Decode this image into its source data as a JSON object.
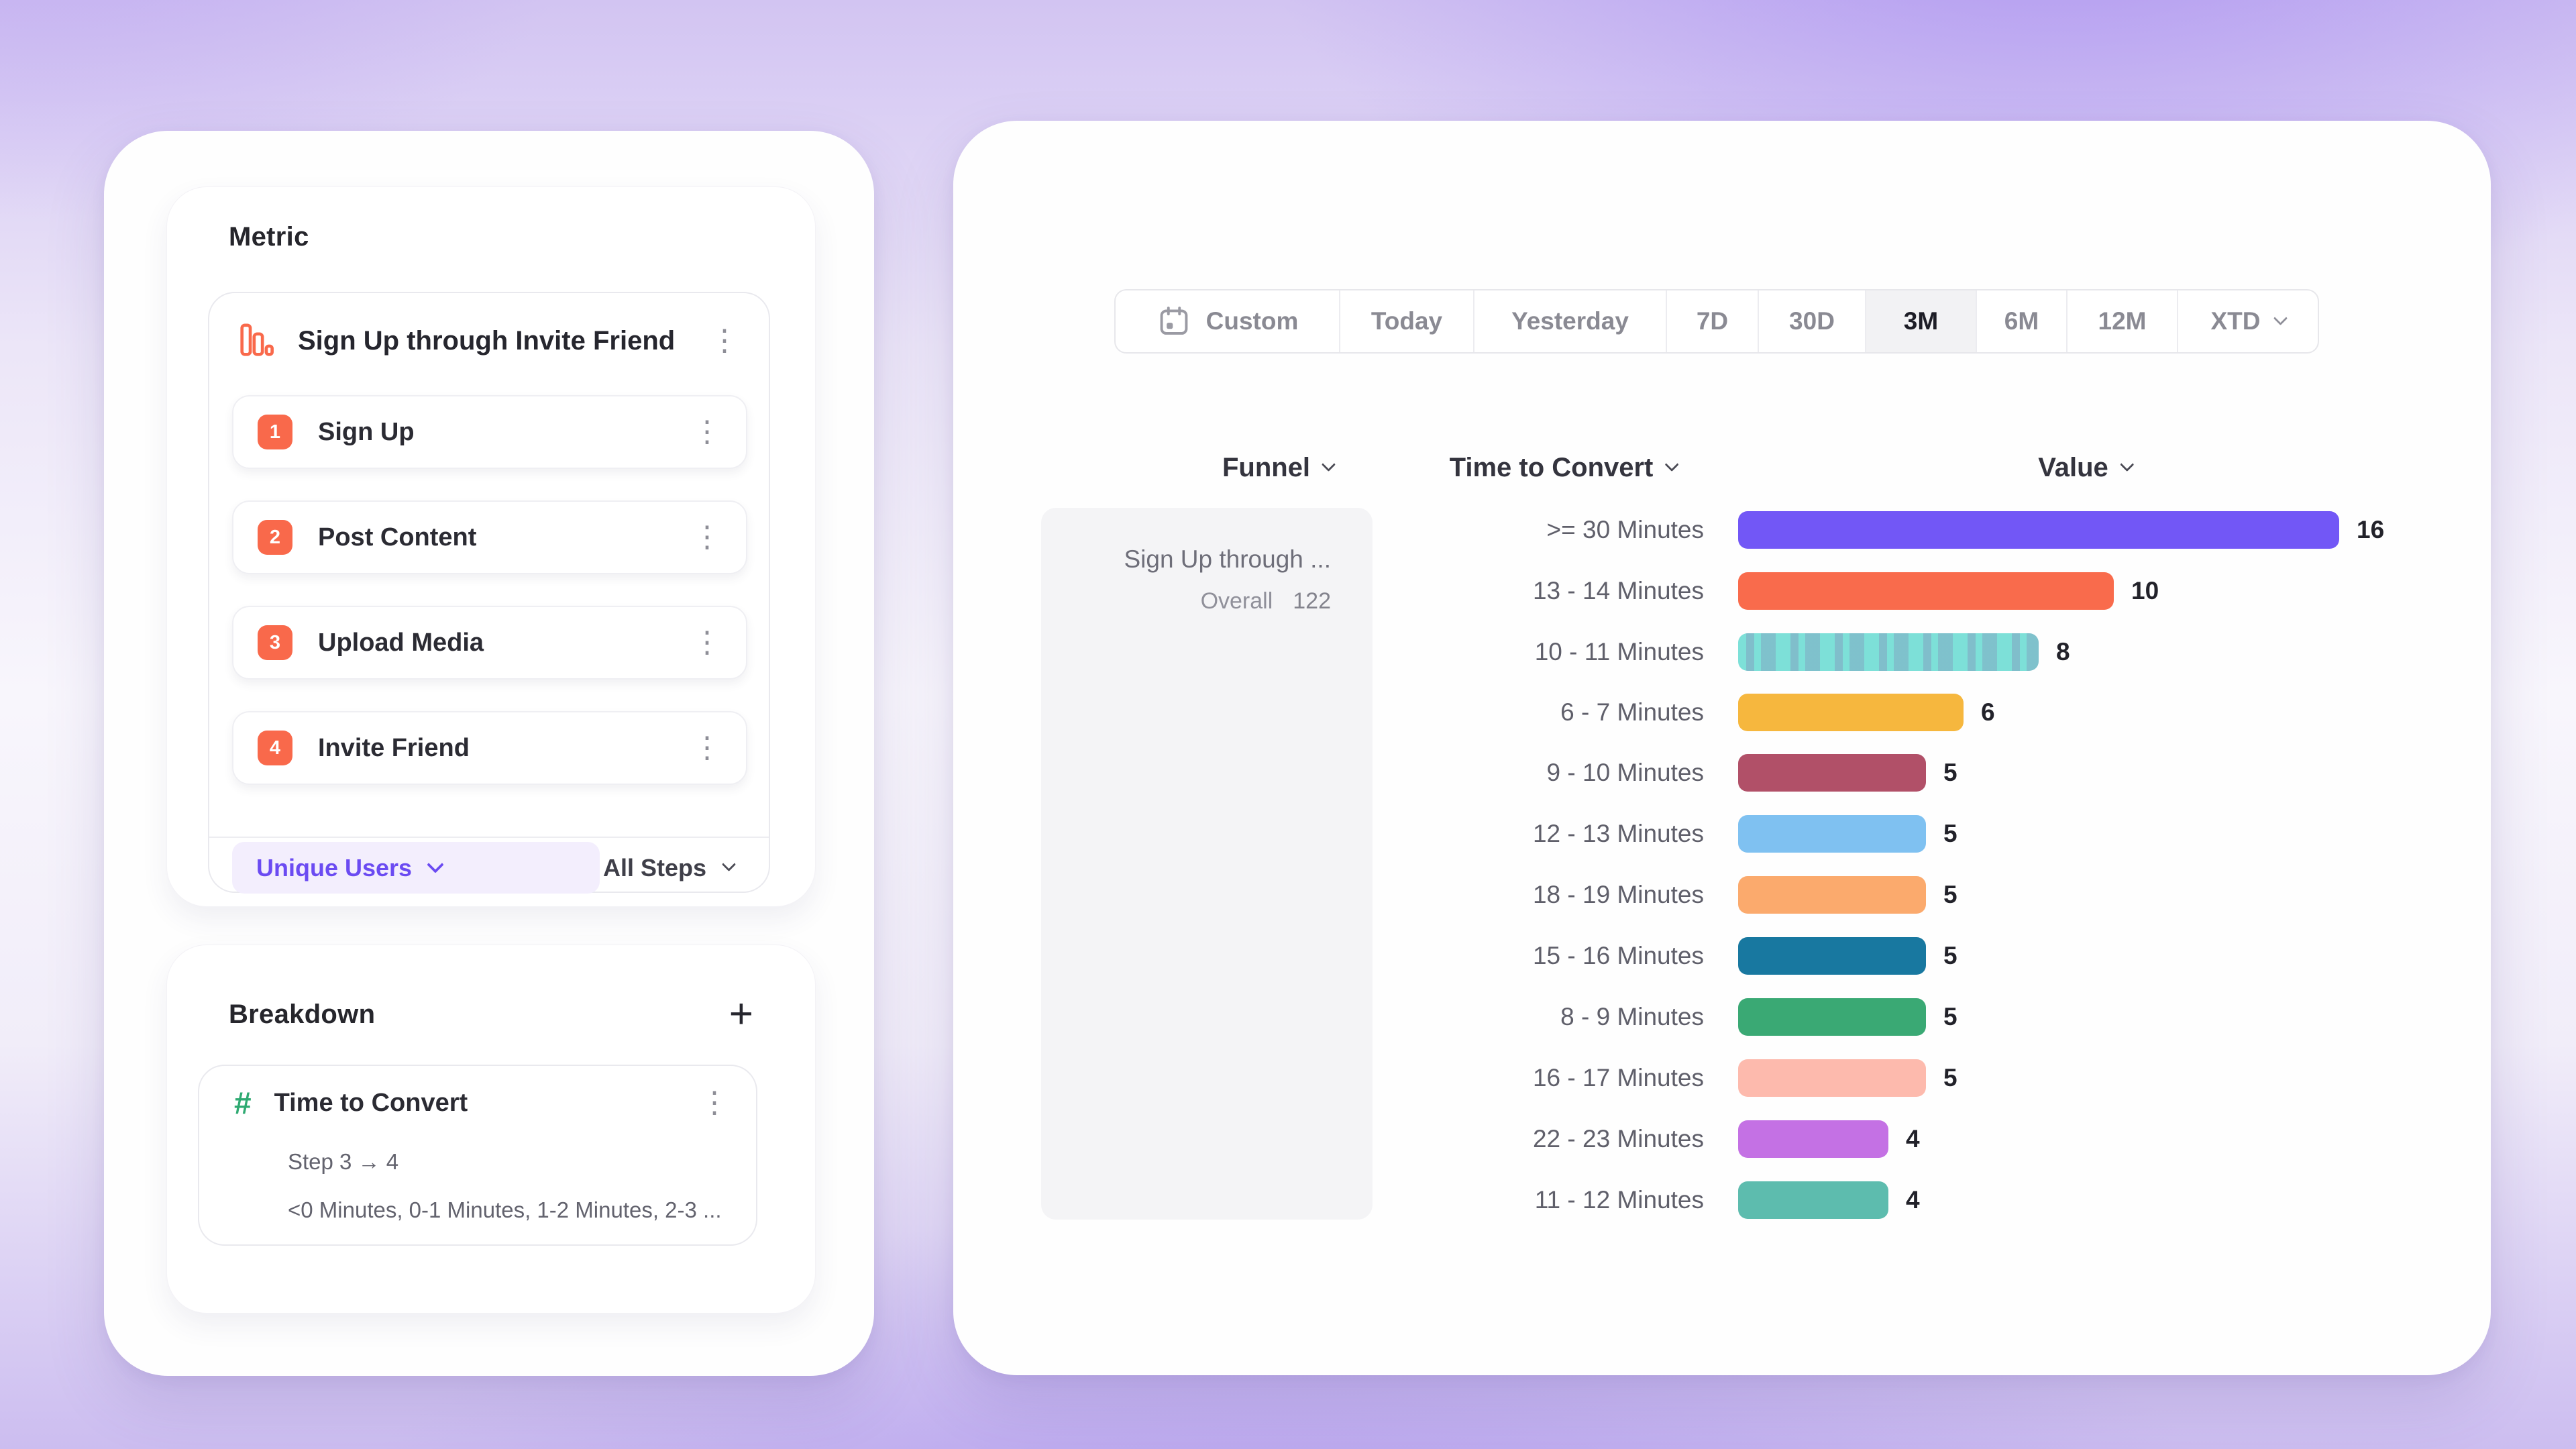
{
  "theme": {
    "accent_purple": "#6b4bf2",
    "accent_orange": "#f9694b",
    "accent_green": "#2faa72",
    "funnel_box_bg": "#f4f4f6",
    "selected_date_bg": "#f2f2f4"
  },
  "left_panel": {
    "metric": {
      "title": "Metric",
      "funnel_name": "Sign Up through Invite Friend",
      "steps": [
        {
          "num": "1",
          "label": "Sign Up"
        },
        {
          "num": "2",
          "label": "Post Content"
        },
        {
          "num": "3",
          "label": "Upload Media"
        },
        {
          "num": "4",
          "label": "Invite Friend"
        }
      ],
      "counting": "Unique Users",
      "steps_scope": "All Steps"
    },
    "breakdown": {
      "title": "Breakdown",
      "add_button": "+",
      "property_name": "Time to Convert",
      "step_range": "Step 3 → 4",
      "buckets_preview": "<0 Minutes, 0-1 Minutes, 1-2 Minutes, 2-3 ..."
    }
  },
  "right_panel": {
    "date_range": {
      "options": [
        "Custom",
        "Today",
        "Yesterday",
        "7D",
        "30D",
        "3M",
        "6M",
        "12M",
        "XTD"
      ],
      "selected": "3M"
    },
    "columns": {
      "funnel": "Funnel",
      "breakdown": "Time to Convert",
      "value": "Value"
    },
    "funnel_summary": {
      "name": "Sign Up through ...",
      "overall_label": "Overall",
      "overall_value": "122"
    }
  },
  "chart_data": {
    "type": "bar",
    "orientation": "horizontal",
    "title": "Time to Convert breakdown (Step 3 → 4)",
    "xlabel": "Value",
    "ylabel": "Time to Convert",
    "categories": [
      ">= 30 Minutes",
      "13 - 14 Minutes",
      "10 - 11 Minutes",
      "6 - 7 Minutes",
      "9 - 10 Minutes",
      "12 - 13 Minutes",
      "18 - 19 Minutes",
      "15 - 16 Minutes",
      "8 - 9 Minutes",
      "16 - 17 Minutes",
      "22 - 23 Minutes",
      "11 - 12 Minutes"
    ],
    "values": [
      16,
      10,
      8,
      6,
      5,
      5,
      5,
      5,
      5,
      5,
      4,
      4
    ],
    "colors": [
      "#7257f6",
      "#f96b4c",
      "#7de0d8",
      "#f6b73e",
      "#b15068",
      "#7fc1f1",
      "#fbaa6d",
      "#1878a0",
      "#3aa974",
      "#fdbaad",
      "#c471e4",
      "#5dbcae"
    ],
    "patterns": {
      "2": "striped"
    },
    "xlim": [
      0,
      16
    ],
    "value_labels": true,
    "legend": false,
    "grid": false
  }
}
